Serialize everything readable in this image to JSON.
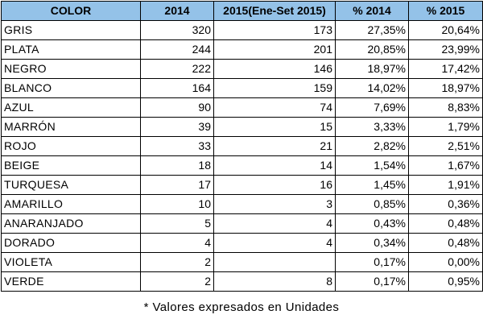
{
  "table": {
    "headers": [
      "COLOR",
      "2014",
      "2015(Ene-Set 2015)",
      "% 2014",
      "% 2015"
    ],
    "rows": [
      [
        "GRIS",
        "320",
        "173",
        "27,35%",
        "20,64%"
      ],
      [
        "PLATA",
        "244",
        "201",
        "20,85%",
        "23,99%"
      ],
      [
        "NEGRO",
        "222",
        "146",
        "18,97%",
        "17,42%"
      ],
      [
        "BLANCO",
        "164",
        "159",
        "14,02%",
        "18,97%"
      ],
      [
        "AZUL",
        "90",
        "74",
        "7,69%",
        "8,83%"
      ],
      [
        "MARRÓN",
        "39",
        "15",
        "3,33%",
        "1,79%"
      ],
      [
        "ROJO",
        "33",
        "21",
        "2,82%",
        "2,51%"
      ],
      [
        "BEIGE",
        "18",
        "14",
        "1,54%",
        "1,67%"
      ],
      [
        "TURQUESA",
        "17",
        "16",
        "1,45%",
        "1,91%"
      ],
      [
        "AMARILLO",
        "10",
        "3",
        "0,85%",
        "0,36%"
      ],
      [
        "ANARANJADO",
        "5",
        "4",
        "0,43%",
        "0,48%"
      ],
      [
        "DORADO",
        "4",
        "4",
        "0,34%",
        "0,48%"
      ],
      [
        "VIOLETA",
        "2",
        "",
        "0,17%",
        "0,00%"
      ],
      [
        "VERDE",
        "2",
        "8",
        "0,17%",
        "0,95%"
      ]
    ]
  },
  "footnote": "* Valores expresados en Unidades"
}
